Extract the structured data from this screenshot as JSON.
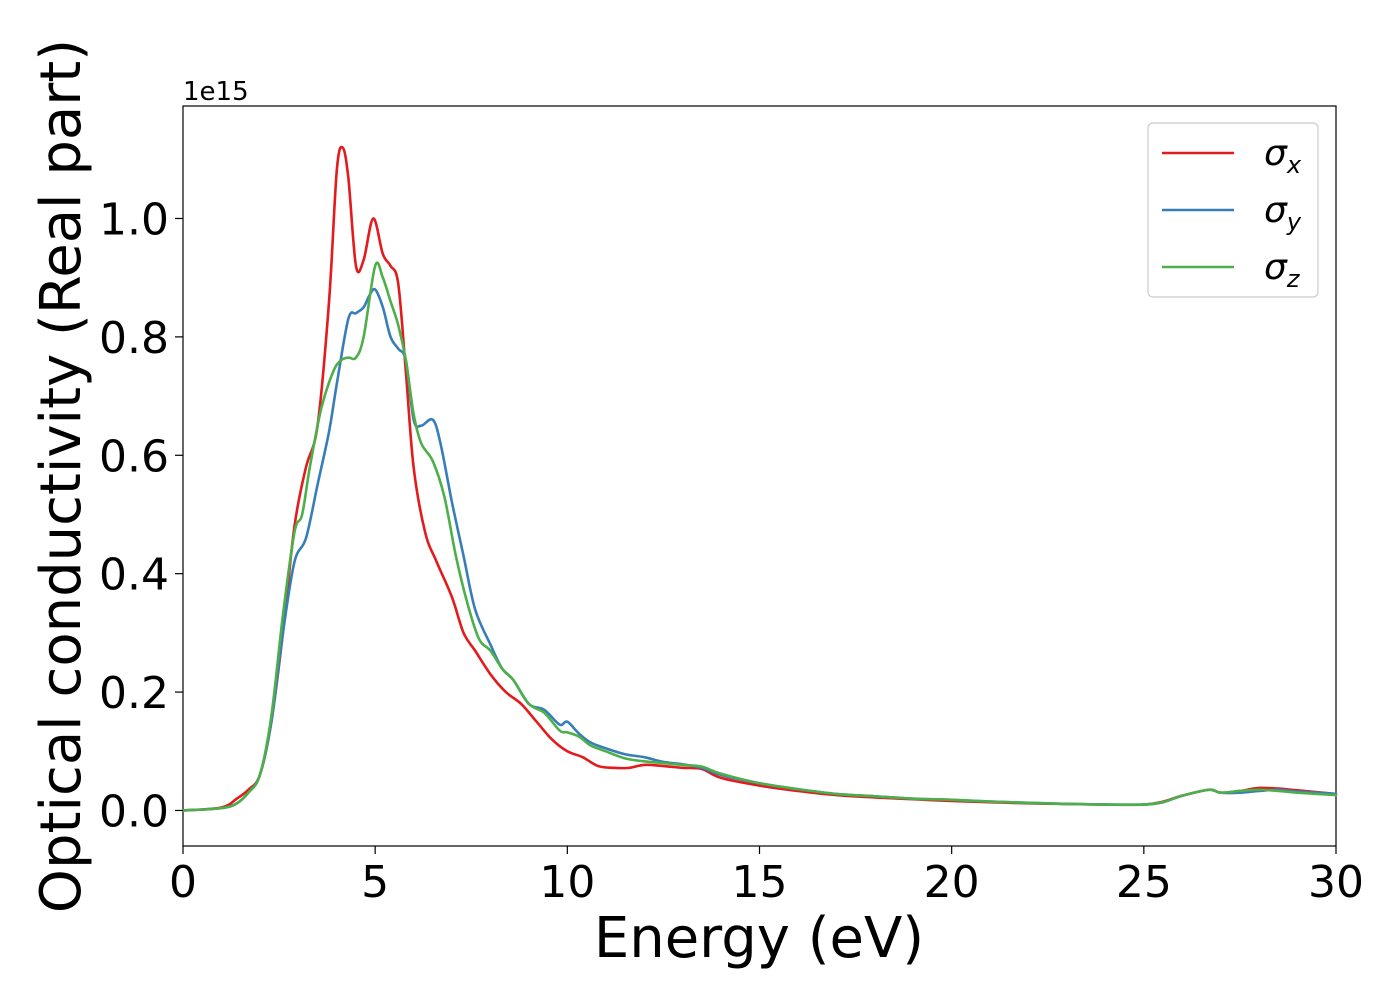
{
  "chart_data": {
    "type": "line",
    "xlabel": "Energy (eV)",
    "ylabel": "Optical conductivity (Real part)",
    "y_offset_label": "1e15",
    "xlim": [
      0,
      30
    ],
    "ylim": [
      -0.06,
      1.19
    ],
    "x_ticks": [
      0,
      5,
      10,
      15,
      20,
      25,
      30
    ],
    "y_ticks": [
      0.0,
      0.2,
      0.4,
      0.6,
      0.8,
      1.0
    ],
    "y_tick_labels": [
      "0.0",
      "0.2",
      "0.4",
      "0.6",
      "0.8",
      "1.0"
    ],
    "x_tick_labels": [
      "0",
      "5",
      "10",
      "15",
      "20",
      "25",
      "30"
    ],
    "grid": false,
    "legend_position": "top-right",
    "series": [
      {
        "name": "σx",
        "symbol": "σ",
        "subscript": "x",
        "color": "#e41a1c",
        "x": [
          0,
          1.0,
          1.4,
          1.7,
          2.0,
          2.3,
          2.6,
          2.9,
          3.2,
          3.5,
          3.8,
          4.0,
          4.15,
          4.3,
          4.5,
          4.7,
          4.95,
          5.2,
          5.4,
          5.6,
          5.8,
          6.0,
          6.3,
          6.6,
          7.0,
          7.3,
          7.6,
          8.0,
          8.4,
          8.8,
          9.2,
          9.6,
          10.0,
          10.4,
          10.8,
          11.2,
          11.6,
          12.0,
          12.5,
          13.0,
          13.5,
          14.0,
          15.0,
          16.0,
          17.0,
          18.0,
          19.0,
          20.0,
          21.0,
          22.0,
          23.0,
          24.0,
          25.0,
          25.5,
          26.0,
          26.7,
          27.0,
          27.5,
          28.0,
          28.5,
          29.0,
          30.0
        ],
        "y": [
          0.0,
          0.005,
          0.02,
          0.035,
          0.06,
          0.15,
          0.3,
          0.48,
          0.58,
          0.65,
          0.86,
          1.08,
          1.12,
          1.07,
          0.92,
          0.93,
          1.0,
          0.94,
          0.92,
          0.89,
          0.74,
          0.58,
          0.47,
          0.42,
          0.36,
          0.3,
          0.27,
          0.23,
          0.2,
          0.18,
          0.15,
          0.12,
          0.1,
          0.09,
          0.075,
          0.072,
          0.072,
          0.077,
          0.075,
          0.072,
          0.07,
          0.055,
          0.042,
          0.033,
          0.026,
          0.022,
          0.019,
          0.016,
          0.014,
          0.012,
          0.011,
          0.01,
          0.01,
          0.015,
          0.025,
          0.035,
          0.03,
          0.033,
          0.038,
          0.037,
          0.034,
          0.028
        ]
      },
      {
        "name": "σy",
        "symbol": "σ",
        "subscript": "y",
        "color": "#377eb8",
        "x": [
          0,
          1.0,
          1.4,
          1.7,
          2.0,
          2.3,
          2.6,
          2.9,
          3.2,
          3.5,
          3.8,
          4.0,
          4.3,
          4.5,
          4.7,
          4.85,
          5.0,
          5.2,
          5.4,
          5.6,
          5.8,
          6.0,
          6.2,
          6.5,
          6.7,
          7.0,
          7.3,
          7.6,
          8.0,
          8.3,
          8.6,
          9.0,
          9.4,
          9.8,
          10.0,
          10.3,
          10.6,
          11.0,
          11.5,
          12.0,
          12.5,
          13.0,
          13.5,
          14.0,
          15.0,
          16.0,
          17.0,
          18.0,
          19.0,
          20.0,
          21.0,
          22.0,
          23.0,
          24.0,
          25.0,
          25.5,
          26.0,
          26.7,
          27.0,
          27.5,
          28.0,
          28.5,
          29.0,
          30.0
        ],
        "y": [
          0.0,
          0.004,
          0.012,
          0.03,
          0.06,
          0.15,
          0.3,
          0.42,
          0.46,
          0.55,
          0.64,
          0.72,
          0.83,
          0.84,
          0.85,
          0.87,
          0.88,
          0.85,
          0.8,
          0.78,
          0.76,
          0.66,
          0.65,
          0.66,
          0.62,
          0.52,
          0.43,
          0.34,
          0.28,
          0.24,
          0.22,
          0.18,
          0.17,
          0.145,
          0.15,
          0.13,
          0.115,
          0.105,
          0.095,
          0.09,
          0.082,
          0.078,
          0.072,
          0.06,
          0.046,
          0.036,
          0.028,
          0.024,
          0.02,
          0.018,
          0.015,
          0.013,
          0.011,
          0.01,
          0.01,
          0.014,
          0.025,
          0.035,
          0.03,
          0.03,
          0.033,
          0.035,
          0.032,
          0.028
        ]
      },
      {
        "name": "σz",
        "symbol": "σ",
        "subscript": "z",
        "color": "#4daf4a",
        "x": [
          0,
          1.0,
          1.4,
          1.7,
          2.0,
          2.3,
          2.6,
          2.9,
          3.1,
          3.3,
          3.6,
          3.9,
          4.1,
          4.3,
          4.5,
          4.7,
          5.0,
          5.2,
          5.4,
          5.6,
          5.8,
          6.0,
          6.2,
          6.5,
          6.8,
          7.1,
          7.4,
          7.7,
          8.0,
          8.3,
          8.6,
          9.0,
          9.4,
          9.8,
          10.0,
          10.3,
          10.6,
          11.0,
          11.5,
          12.0,
          12.5,
          13.0,
          13.5,
          14.0,
          15.0,
          16.0,
          17.0,
          18.0,
          19.0,
          20.0,
          21.0,
          22.0,
          23.0,
          24.0,
          25.0,
          25.5,
          26.0,
          26.7,
          27.0,
          27.5,
          28.0,
          28.5,
          29.0,
          30.0
        ],
        "y": [
          0.0,
          0.004,
          0.012,
          0.03,
          0.06,
          0.16,
          0.33,
          0.47,
          0.5,
          0.58,
          0.68,
          0.74,
          0.76,
          0.765,
          0.765,
          0.8,
          0.92,
          0.9,
          0.86,
          0.82,
          0.76,
          0.67,
          0.62,
          0.59,
          0.53,
          0.43,
          0.35,
          0.29,
          0.27,
          0.24,
          0.22,
          0.18,
          0.165,
          0.135,
          0.132,
          0.125,
          0.11,
          0.1,
          0.088,
          0.083,
          0.08,
          0.077,
          0.074,
          0.062,
          0.046,
          0.036,
          0.028,
          0.024,
          0.02,
          0.018,
          0.015,
          0.013,
          0.011,
          0.01,
          0.01,
          0.014,
          0.025,
          0.035,
          0.03,
          0.033,
          0.035,
          0.033,
          0.03,
          0.026
        ]
      }
    ]
  }
}
